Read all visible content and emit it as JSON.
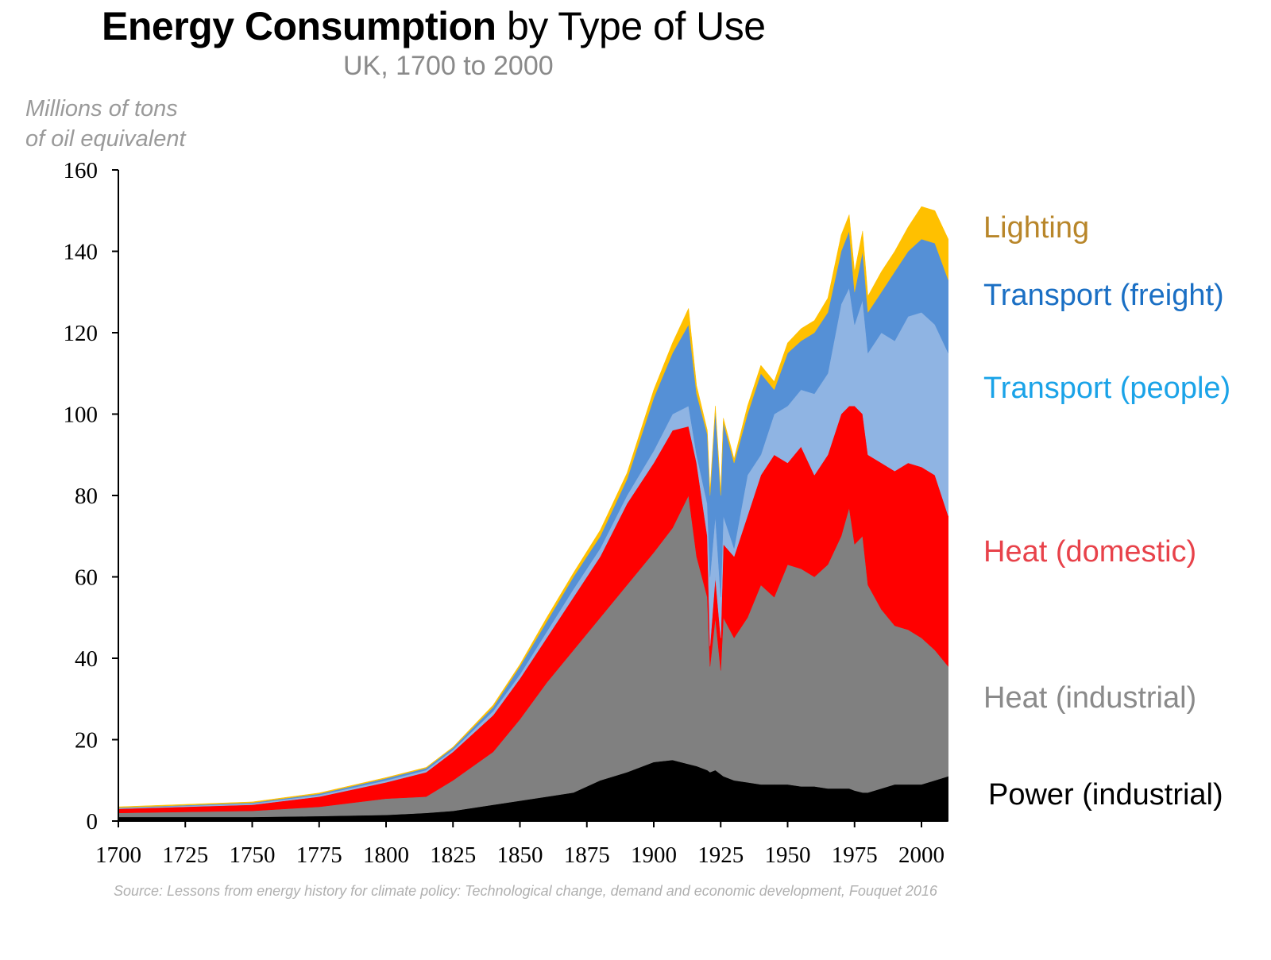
{
  "chart_data": {
    "type": "area",
    "stacked": true,
    "title_bold": "Energy Consumption",
    "title_rest": " by Type of Use",
    "subtitle": "UK, 1700 to 2000",
    "ylabel_line1": "Millions of tons",
    "ylabel_line2": "of oil equivalent",
    "xlabel": "",
    "source": "Source: Lessons from energy history for climate policy: Technological change, demand and economic development, Fouquet 2016",
    "xlim": [
      1700,
      2010
    ],
    "ylim": [
      0,
      160
    ],
    "x_ticks": [
      1700,
      1725,
      1750,
      1775,
      1800,
      1825,
      1850,
      1875,
      1900,
      1925,
      1950,
      1975,
      2000
    ],
    "y_ticks": [
      0,
      20,
      40,
      60,
      80,
      100,
      120,
      140,
      160
    ],
    "grid": false,
    "legend_placement": "right (labels beside layers)",
    "x": [
      1700,
      1750,
      1775,
      1800,
      1815,
      1825,
      1840,
      1850,
      1860,
      1870,
      1880,
      1890,
      1900,
      1907,
      1913,
      1916,
      1920,
      1921,
      1923,
      1925,
      1926,
      1930,
      1935,
      1940,
      1945,
      1950,
      1955,
      1960,
      1965,
      1970,
      1973,
      1975,
      1978,
      1980,
      1985,
      1990,
      1995,
      2000,
      2005,
      2010
    ],
    "series": [
      {
        "name": "Power (industrial)",
        "color": "#000000",
        "label_color": "#000000",
        "values": [
          1,
          1,
          1.2,
          1.5,
          2,
          2.5,
          4,
          5,
          6,
          7,
          10,
          12,
          14.5,
          15,
          14,
          13.5,
          12.5,
          12,
          12.5,
          11.5,
          11,
          10,
          9.5,
          9,
          9,
          9,
          8.5,
          8.5,
          8,
          8,
          8,
          7.5,
          7,
          7,
          8,
          9,
          9,
          9,
          10,
          11
        ]
      },
      {
        "name": "Heat (industrial)",
        "color": "#808080",
        "label_color": "#8a8a8a",
        "values": [
          1,
          1.5,
          2.3,
          4,
          4,
          7.5,
          13,
          20,
          28,
          35,
          40,
          46,
          51.5,
          57,
          66,
          51.5,
          42.5,
          26,
          37.5,
          25.5,
          39,
          35,
          40.5,
          49,
          46,
          54,
          53.5,
          51.5,
          55,
          62,
          69,
          60.5,
          63,
          51,
          44,
          39,
          38,
          36,
          32,
          27
        ]
      },
      {
        "name": "Heat (domestic)",
        "color": "#ff0000",
        "label_color": "#e8424a",
        "values": [
          1,
          1.5,
          2.5,
          4,
          6,
          7,
          9,
          10,
          11,
          13,
          15,
          20,
          22,
          24,
          17,
          23,
          15,
          5,
          10,
          8,
          18,
          20,
          25,
          27,
          35,
          25,
          30,
          25,
          27,
          30,
          25,
          34,
          30,
          32,
          36,
          38,
          41,
          42,
          43,
          37
        ]
      },
      {
        "name": "Transport (people)",
        "color": "#8fb4e3",
        "label_color": "#1aa3e8",
        "values": [
          0.2,
          0.3,
          0.4,
          0.5,
          0.5,
          0.5,
          1,
          1,
          1.5,
          2,
          2,
          2,
          3,
          4,
          5,
          2,
          8,
          17,
          15,
          10,
          7,
          2,
          10,
          5,
          10,
          14,
          14,
          20,
          20,
          27,
          29,
          20,
          28,
          25,
          32,
          32,
          36,
          38,
          37,
          40
        ]
      },
      {
        "name": "Transport (freight)",
        "color": "#5590d6",
        "label_color": "#1a6fc4",
        "values": [
          0.1,
          0.2,
          0.3,
          0.5,
          0.5,
          0.5,
          1,
          2,
          2.5,
          3,
          3,
          4,
          13,
          15,
          20,
          15,
          17,
          20,
          26,
          25,
          23,
          21,
          15,
          20,
          6,
          13,
          12,
          15,
          15,
          13,
          14,
          8,
          12,
          10,
          10,
          17,
          16,
          18,
          20,
          18
        ]
      },
      {
        "name": "Lighting",
        "color": "#ffc000",
        "label_color": "#b8862a",
        "values": [
          0.2,
          0.2,
          0.2,
          0.2,
          0.2,
          0.2,
          0.5,
          0.5,
          1,
          1,
          1.5,
          1.5,
          2,
          2.5,
          4,
          2,
          1,
          1,
          1,
          1,
          1,
          1,
          2,
          2,
          2,
          2.5,
          3,
          3,
          3.5,
          4,
          4,
          5,
          5,
          4,
          5,
          5,
          6,
          8,
          8,
          10
        ]
      }
    ]
  }
}
